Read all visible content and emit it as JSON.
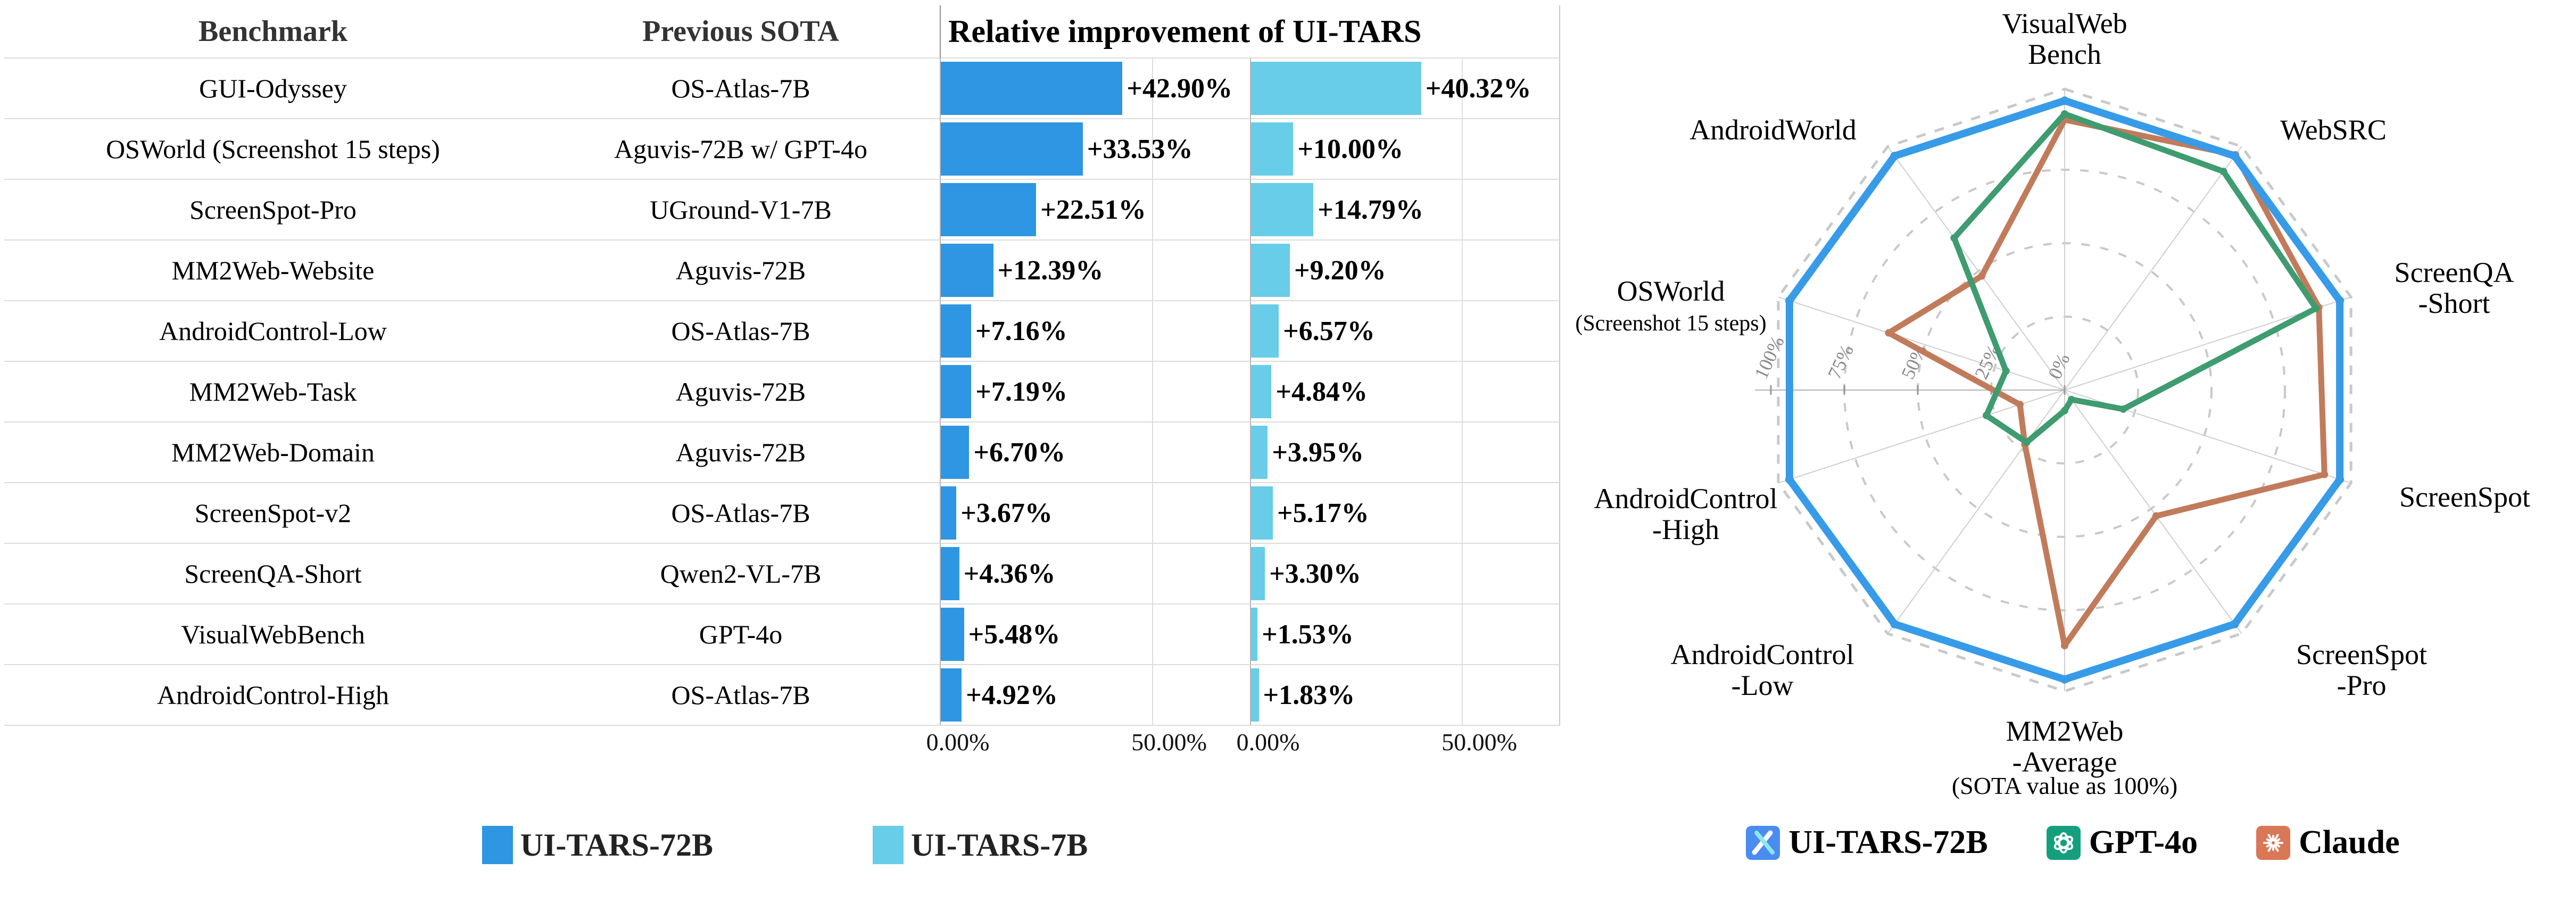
{
  "table": {
    "headers": {
      "benchmark": "Benchmark",
      "previous_sota": "Previous SOTA",
      "improvement": "Relative improvement of UI-TARS"
    },
    "axis_ticks": [
      "0.00%",
      "50.00%"
    ],
    "legend": [
      {
        "label": "UI-TARS-72B",
        "color": "#2E96E2"
      },
      {
        "label": "UI-TARS-7B",
        "color": "#67CDE9"
      }
    ]
  },
  "radar": {
    "caption": "(SOTA value as 100%)",
    "tick_labels": [
      "0%",
      "25%",
      "50%",
      "75%",
      "100%"
    ],
    "axes_display": [
      [
        "VisualWeb",
        "Bench"
      ],
      [
        "WebSRC"
      ],
      [
        "ScreenQA",
        "-Short"
      ],
      [
        "ScreenSpot"
      ],
      [
        "ScreenSpot",
        "-Pro"
      ],
      [
        "MM2Web",
        "-Average"
      ],
      [
        "AndroidControl",
        "-Low"
      ],
      [
        "AndroidControl",
        "-High"
      ],
      [
        "OSWorld",
        "(Screenshot 15 steps)"
      ],
      [
        "AndroidWorld"
      ]
    ],
    "legend": [
      {
        "label": "UI-TARS-72B",
        "icon": "ui-tars-logo",
        "color": "#4A8CF0"
      },
      {
        "label": "GPT-4o",
        "icon": "openai-logo",
        "color": "#14A07E"
      },
      {
        "label": "Claude",
        "icon": "claude-logo",
        "color": "#D97757"
      }
    ]
  },
  "chart_data": [
    {
      "type": "bar",
      "orientation": "horizontal",
      "title": "Relative improvement of UI-TARS",
      "categories": [
        "GUI-Odyssey",
        "OSWorld (Screenshot 15 steps)",
        "ScreenSpot-Pro",
        "MM2Web-Website",
        "AndroidControl-Low",
        "MM2Web-Task",
        "MM2Web-Domain",
        "ScreenSpot-v2",
        "ScreenQA-Short",
        "VisualWebBench",
        "AndroidControl-High"
      ],
      "previous_sota": [
        "OS-Atlas-7B",
        "Aguvis-72B w/ GPT-4o",
        "UGround-V1-7B",
        "Aguvis-72B",
        "OS-Atlas-7B",
        "Aguvis-72B",
        "Aguvis-72B",
        "OS-Atlas-7B",
        "Qwen2-VL-7B",
        "GPT-4o",
        "OS-Atlas-7B"
      ],
      "series": [
        {
          "name": "UI-TARS-72B",
          "color": "#2E96E2",
          "values": [
            42.9,
            33.53,
            22.51,
            12.39,
            7.16,
            7.19,
            6.7,
            3.67,
            4.36,
            5.48,
            4.92
          ],
          "labels": [
            "+42.90%",
            "+33.53%",
            "+22.51%",
            "+12.39%",
            "+7.16%",
            "+7.19%",
            "+6.70%",
            "+3.67%",
            "+4.36%",
            "+5.48%",
            "+4.92%"
          ]
        },
        {
          "name": "UI-TARS-7B",
          "color": "#67CDE9",
          "values": [
            40.32,
            10.0,
            14.79,
            9.2,
            6.57,
            4.84,
            3.95,
            5.17,
            3.3,
            1.53,
            1.83
          ],
          "labels": [
            "+40.32%",
            "+10.00%",
            "+14.79%",
            "+9.20%",
            "+6.57%",
            "+4.84%",
            "+3.95%",
            "+5.17%",
            "+3.30%",
            "+1.53%",
            "+1.83%"
          ]
        }
      ],
      "xlim": [
        0,
        73
      ],
      "x_ticks_percent": [
        0,
        50
      ],
      "x_tick_labels": [
        "0.00%",
        "50.00%"
      ]
    },
    {
      "type": "radar",
      "caption": "(SOTA value as 100%)",
      "axes": [
        "VisualWebBench",
        "WebSRC",
        "ScreenQA-Short",
        "ScreenSpot",
        "ScreenSpot-Pro",
        "MM2Web-Average",
        "AndroidControl-Low",
        "AndroidControl-High",
        "OSWorld (Screenshot 15 steps)",
        "AndroidWorld"
      ],
      "radial_ticks_percent": [
        0,
        25,
        50,
        75,
        100
      ],
      "series": [
        {
          "name": "UI-TARS-72B",
          "color": "#379BE8",
          "values_percent": [
            98.5,
            98.5,
            98.5,
            98.5,
            98.5,
            98.5,
            98.5,
            98.5,
            98.5,
            98.5
          ]
        },
        {
          "name": "GPT-4o",
          "color": "#3E9C70",
          "values_percent": [
            94,
            92,
            90,
            21,
            4,
            7,
            22,
            28,
            21,
            64
          ]
        },
        {
          "name": "Claude",
          "color": "#C17B5B",
          "values_percent": [
            92,
            99,
            91,
            93,
            53,
            87,
            23,
            16,
            63,
            48
          ]
        }
      ]
    }
  ]
}
